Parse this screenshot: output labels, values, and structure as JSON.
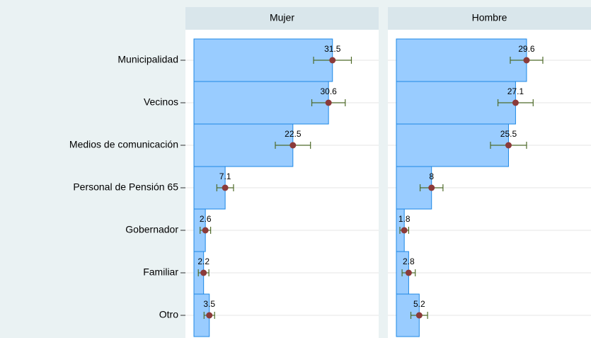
{
  "chart_data": [
    {
      "type": "bar",
      "title": "Mujer",
      "categories": [
        "Municipalidad",
        "Vecinos",
        "Medios de comunicación",
        "Personal de Pensión 65",
        "Gobernador",
        "Familiar",
        "Otro"
      ],
      "values": [
        31.5,
        30.6,
        22.5,
        7.1,
        2.6,
        2.2,
        3.5
      ],
      "errors": [
        4.3,
        3.8,
        4.0,
        1.9,
        1.2,
        1.2,
        1.2
      ],
      "color": "#99ccff",
      "xlim": [
        0,
        42
      ]
    },
    {
      "type": "bar",
      "title": "Hombre",
      "values": [
        29.6,
        27.1,
        25.5,
        8,
        1.8,
        2.8,
        5.2
      ],
      "errors": [
        3.7,
        4.0,
        4.1,
        2.6,
        1.0,
        1.5,
        1.9
      ],
      "color": "#99ccff",
      "xlim": [
        0,
        42
      ]
    }
  ]
}
